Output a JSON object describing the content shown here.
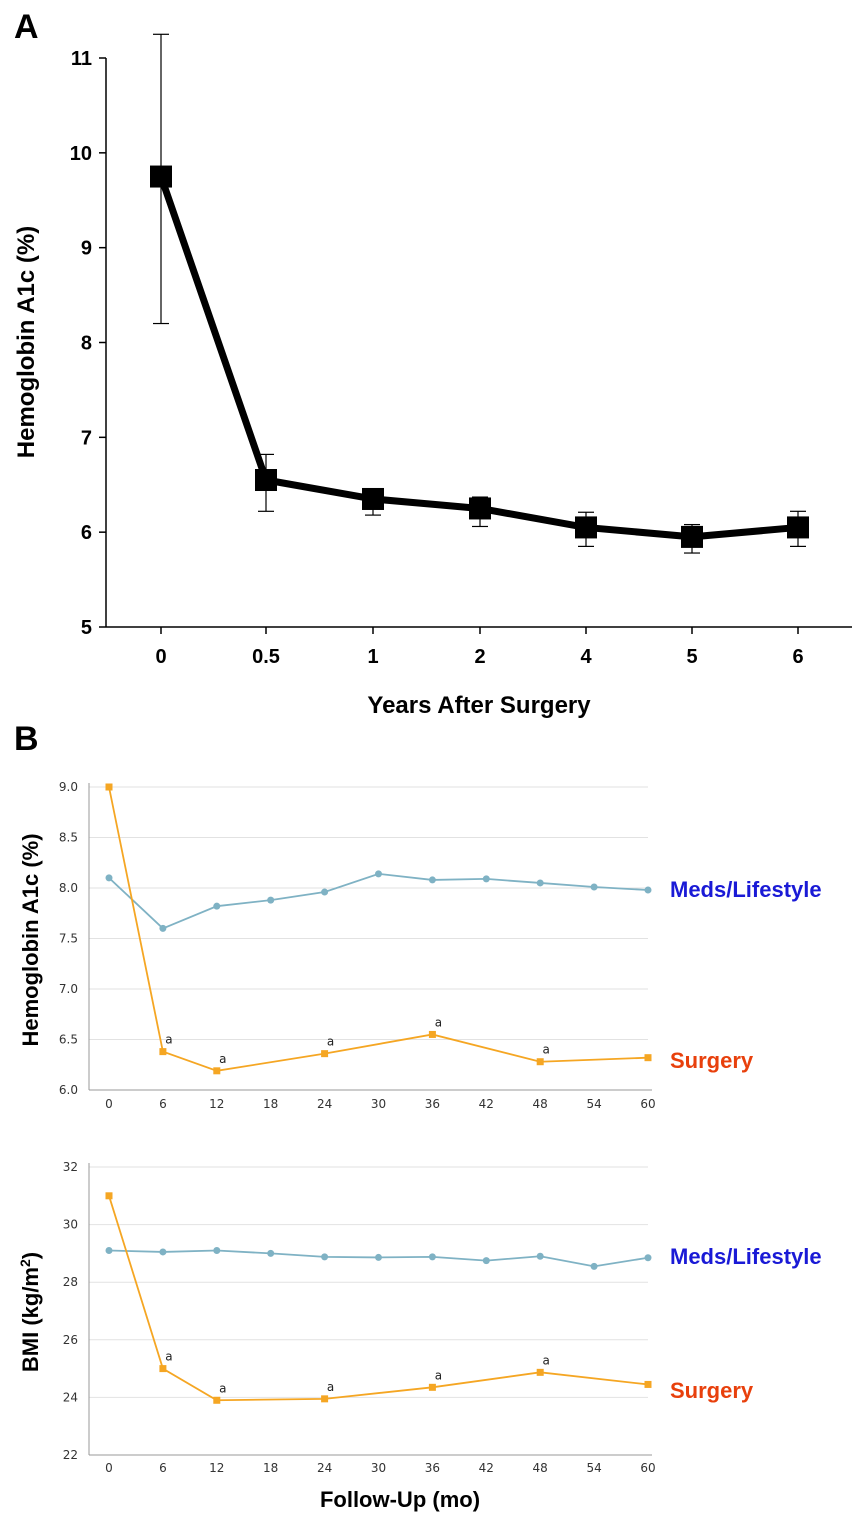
{
  "panels": {
    "a_letter": "A",
    "b_letter": "B"
  },
  "colors": {
    "meds": "#7fb2c4",
    "surgery": "#f5a623",
    "meds_label": "#1a1ad6",
    "surgery_label": "#e8400c"
  },
  "chart_data": [
    {
      "type": "line",
      "categories": [
        "0",
        "0.5",
        "1",
        "2",
        "4",
        "5",
        "6"
      ],
      "series": [
        {
          "values": [
            9.75,
            6.55,
            6.35,
            6.25,
            6.05,
            5.95,
            6.05
          ],
          "error_low": [
            8.2,
            6.22,
            6.18,
            6.06,
            5.85,
            5.78,
            5.85
          ],
          "error_high": [
            11.25,
            6.82,
            6.45,
            6.37,
            6.21,
            6.08,
            6.22
          ]
        }
      ],
      "xlabel": "Years After Surgery",
      "ylabel": "Hemoglobin  A1c (%)",
      "ylim": [
        5,
        11
      ],
      "yticks": [
        "5",
        "6",
        "7",
        "8",
        "9",
        "10",
        "11"
      ]
    },
    {
      "type": "line",
      "x": [
        0,
        6,
        12,
        18,
        24,
        30,
        36,
        42,
        48,
        54,
        60
      ],
      "xticks": [
        "0",
        "6",
        "12",
        "18",
        "24",
        "30",
        "36",
        "42",
        "48",
        "54",
        "60"
      ],
      "series": [
        {
          "name": "Meds/Lifestyle",
          "x": [
            0,
            6,
            12,
            18,
            24,
            30,
            36,
            42,
            48,
            54,
            60
          ],
          "values": [
            8.1,
            7.6,
            7.82,
            7.88,
            7.96,
            8.14,
            8.08,
            8.09,
            8.05,
            8.01,
            7.98
          ]
        },
        {
          "name": "Surgery",
          "x": [
            0,
            6,
            12,
            24,
            36,
            48,
            60
          ],
          "values": [
            9.0,
            6.38,
            6.19,
            6.36,
            6.55,
            6.28,
            6.32
          ],
          "annotations": [
            "",
            "a",
            "a",
            "a",
            "a",
            "a",
            ""
          ]
        }
      ],
      "ylabel": "Hemoglobin A1c (%)",
      "ylim": [
        6.0,
        9.0
      ],
      "yticks": [
        "6.0",
        "6.5",
        "7.0",
        "7.5",
        "8.0",
        "8.5",
        "9.0"
      ],
      "grid": true
    },
    {
      "type": "line",
      "x": [
        0,
        6,
        12,
        18,
        24,
        30,
        36,
        42,
        48,
        54,
        60
      ],
      "xticks": [
        "0",
        "6",
        "12",
        "18",
        "24",
        "30",
        "36",
        "42",
        "48",
        "54",
        "60"
      ],
      "series": [
        {
          "name": "Meds/Lifestyle",
          "x": [
            0,
            6,
            12,
            18,
            24,
            30,
            36,
            42,
            48,
            54,
            60
          ],
          "values": [
            29.1,
            29.05,
            29.1,
            29.0,
            28.88,
            28.86,
            28.88,
            28.75,
            28.9,
            28.55,
            28.85
          ]
        },
        {
          "name": "Surgery",
          "x": [
            0,
            6,
            12,
            24,
            36,
            48,
            60
          ],
          "values": [
            31.0,
            25.0,
            23.9,
            23.95,
            24.35,
            24.87,
            24.45
          ],
          "annotations": [
            "",
            "a",
            "a",
            "a",
            "a",
            "a",
            ""
          ]
        }
      ],
      "xlabel": "Follow-Up (mo)",
      "ylabel_main": "BMI (kg/m",
      "ylabel_sup": "2",
      "ylabel_end": ")",
      "ylim": [
        22,
        32
      ],
      "yticks": [
        "22",
        "24",
        "26",
        "28",
        "30",
        "32"
      ],
      "grid": true
    }
  ]
}
